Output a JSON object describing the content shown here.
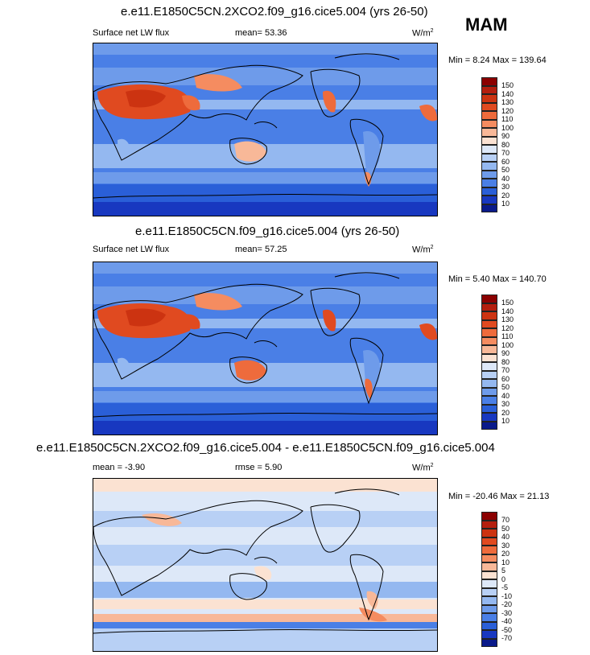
{
  "season": "MAM",
  "panels": [
    {
      "title": "e.e11.E1850C5CN.2XCO2.f09_g16.cice5.004 (yrs 26-50)",
      "variable": "Surface net LW flux",
      "stat1": "mean=  53.36",
      "stat2": "",
      "units": "W/m",
      "units_sup": "2",
      "minmax": "Min =  8.24 Max = 139.64",
      "legend": {
        "labels": [
          "150",
          "140",
          "130",
          "120",
          "110",
          "100",
          "90",
          "80",
          "70",
          "60",
          "50",
          "40",
          "30",
          "20",
          "10"
        ],
        "colors": [
          "#8b0000",
          "#b41e0e",
          "#cc3311",
          "#e04a20",
          "#ee6b3c",
          "#f58c60",
          "#f8b898",
          "#fbe2d2",
          "#dde8f8",
          "#b8d0f5",
          "#94b8f0",
          "#6e9bea",
          "#4a7fe6",
          "#2a5fd8",
          "#1838c0",
          "#0a1a8a"
        ],
        "series": "absolute"
      }
    },
    {
      "title": "e.e11.E1850C5CN.f09_g16.cice5.004 (yrs 26-50)",
      "variable": "Surface net LW flux",
      "stat1": "mean=  57.25",
      "stat2": "",
      "units": "W/m",
      "units_sup": "2",
      "minmax": "Min =  5.40 Max = 140.70",
      "legend": {
        "labels": [
          "150",
          "140",
          "130",
          "120",
          "110",
          "100",
          "90",
          "80",
          "70",
          "60",
          "50",
          "40",
          "30",
          "20",
          "10"
        ],
        "colors": [
          "#8b0000",
          "#b41e0e",
          "#cc3311",
          "#e04a20",
          "#ee6b3c",
          "#f58c60",
          "#f8b898",
          "#fbe2d2",
          "#dde8f8",
          "#b8d0f5",
          "#94b8f0",
          "#6e9bea",
          "#4a7fe6",
          "#2a5fd8",
          "#1838c0",
          "#0a1a8a"
        ],
        "series": "absolute"
      }
    },
    {
      "title": "e.e11.E1850C5CN.2XCO2.f09_g16.cice5.004 - e.e11.E1850C5CN.f09_g16.cice5.004",
      "variable": "",
      "stat1": "mean =  -3.90",
      "stat2": "rmse =  5.90",
      "units": "W/m",
      "units_sup": "2",
      "minmax": "Min = -20.46 Max =  21.13",
      "legend": {
        "labels": [
          "70",
          "50",
          "40",
          "30",
          "20",
          "10",
          "5",
          "0",
          "-5",
          "-10",
          "-20",
          "-30",
          "-40",
          "-50",
          "-70"
        ],
        "colors": [
          "#8b0000",
          "#b41e0e",
          "#cc3311",
          "#e04a20",
          "#ee6b3c",
          "#f58c60",
          "#f8b898",
          "#fbe2d2",
          "#dde8f8",
          "#b8d0f5",
          "#94b8f0",
          "#6e9bea",
          "#4a7fe6",
          "#2a5fd8",
          "#1838c0",
          "#0a1a8a"
        ],
        "series": "difference"
      }
    }
  ]
}
